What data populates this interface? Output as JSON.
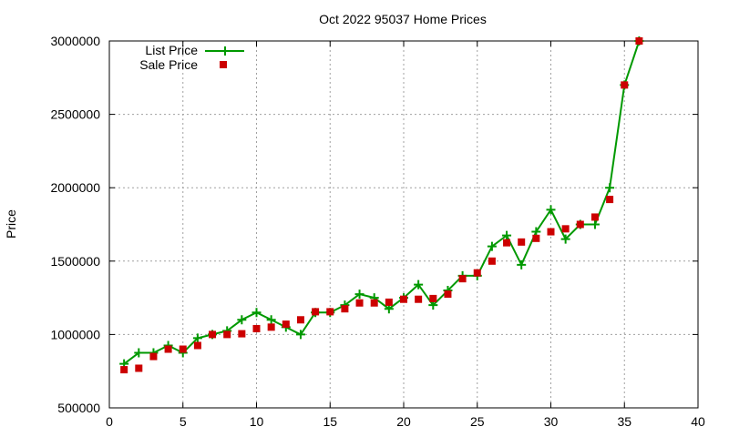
{
  "chart_data": {
    "type": "line",
    "title": "Oct 2022 95037 Home Prices",
    "xlabel": "",
    "ylabel": "Price",
    "xlim": [
      0,
      40
    ],
    "ylim": [
      500000,
      3000000
    ],
    "xticks": [
      0,
      5,
      10,
      15,
      20,
      25,
      30,
      35,
      40
    ],
    "yticks": [
      500000,
      1000000,
      1500000,
      2000000,
      2500000,
      3000000
    ],
    "grid": true,
    "legend_position": "top-left",
    "series": [
      {
        "name": "List Price",
        "style": "line-plus",
        "color": "#009900",
        "x": [
          1,
          2,
          3,
          4,
          5,
          6,
          7,
          8,
          9,
          10,
          11,
          12,
          13,
          14,
          15,
          16,
          17,
          18,
          19,
          20,
          21,
          22,
          23,
          24,
          25,
          26,
          27,
          28,
          29,
          30,
          31,
          32,
          33,
          34,
          35,
          36
        ],
        "values": [
          800000,
          875000,
          875000,
          925000,
          875000,
          975000,
          1000000,
          1025000,
          1100000,
          1150000,
          1100000,
          1050000,
          1000000,
          1150000,
          1150000,
          1200000,
          1275000,
          1250000,
          1175000,
          1250000,
          1340000,
          1200000,
          1300000,
          1400000,
          1400000,
          1600000,
          1675000,
          1475000,
          1700000,
          1850000,
          1650000,
          1750000,
          1750000,
          2000000,
          2700000,
          3000000
        ]
      },
      {
        "name": "Sale Price",
        "style": "square-markers",
        "color": "#cc0000",
        "x": [
          1,
          2,
          3,
          4,
          5,
          6,
          7,
          8,
          9,
          10,
          11,
          12,
          13,
          14,
          15,
          16,
          17,
          18,
          19,
          20,
          21,
          22,
          23,
          24,
          25,
          26,
          27,
          28,
          29,
          30,
          31,
          32,
          33,
          34,
          35,
          36
        ],
        "values": [
          760000,
          770000,
          850000,
          900000,
          900000,
          925000,
          1000000,
          1000000,
          1005000,
          1040000,
          1050000,
          1070000,
          1100000,
          1155000,
          1155000,
          1175000,
          1215000,
          1215000,
          1220000,
          1240000,
          1240000,
          1245000,
          1275000,
          1380000,
          1420000,
          1500000,
          1625000,
          1630000,
          1655000,
          1700000,
          1720000,
          1750000,
          1800000,
          1920000,
          2700000,
          3000000
        ]
      }
    ]
  }
}
